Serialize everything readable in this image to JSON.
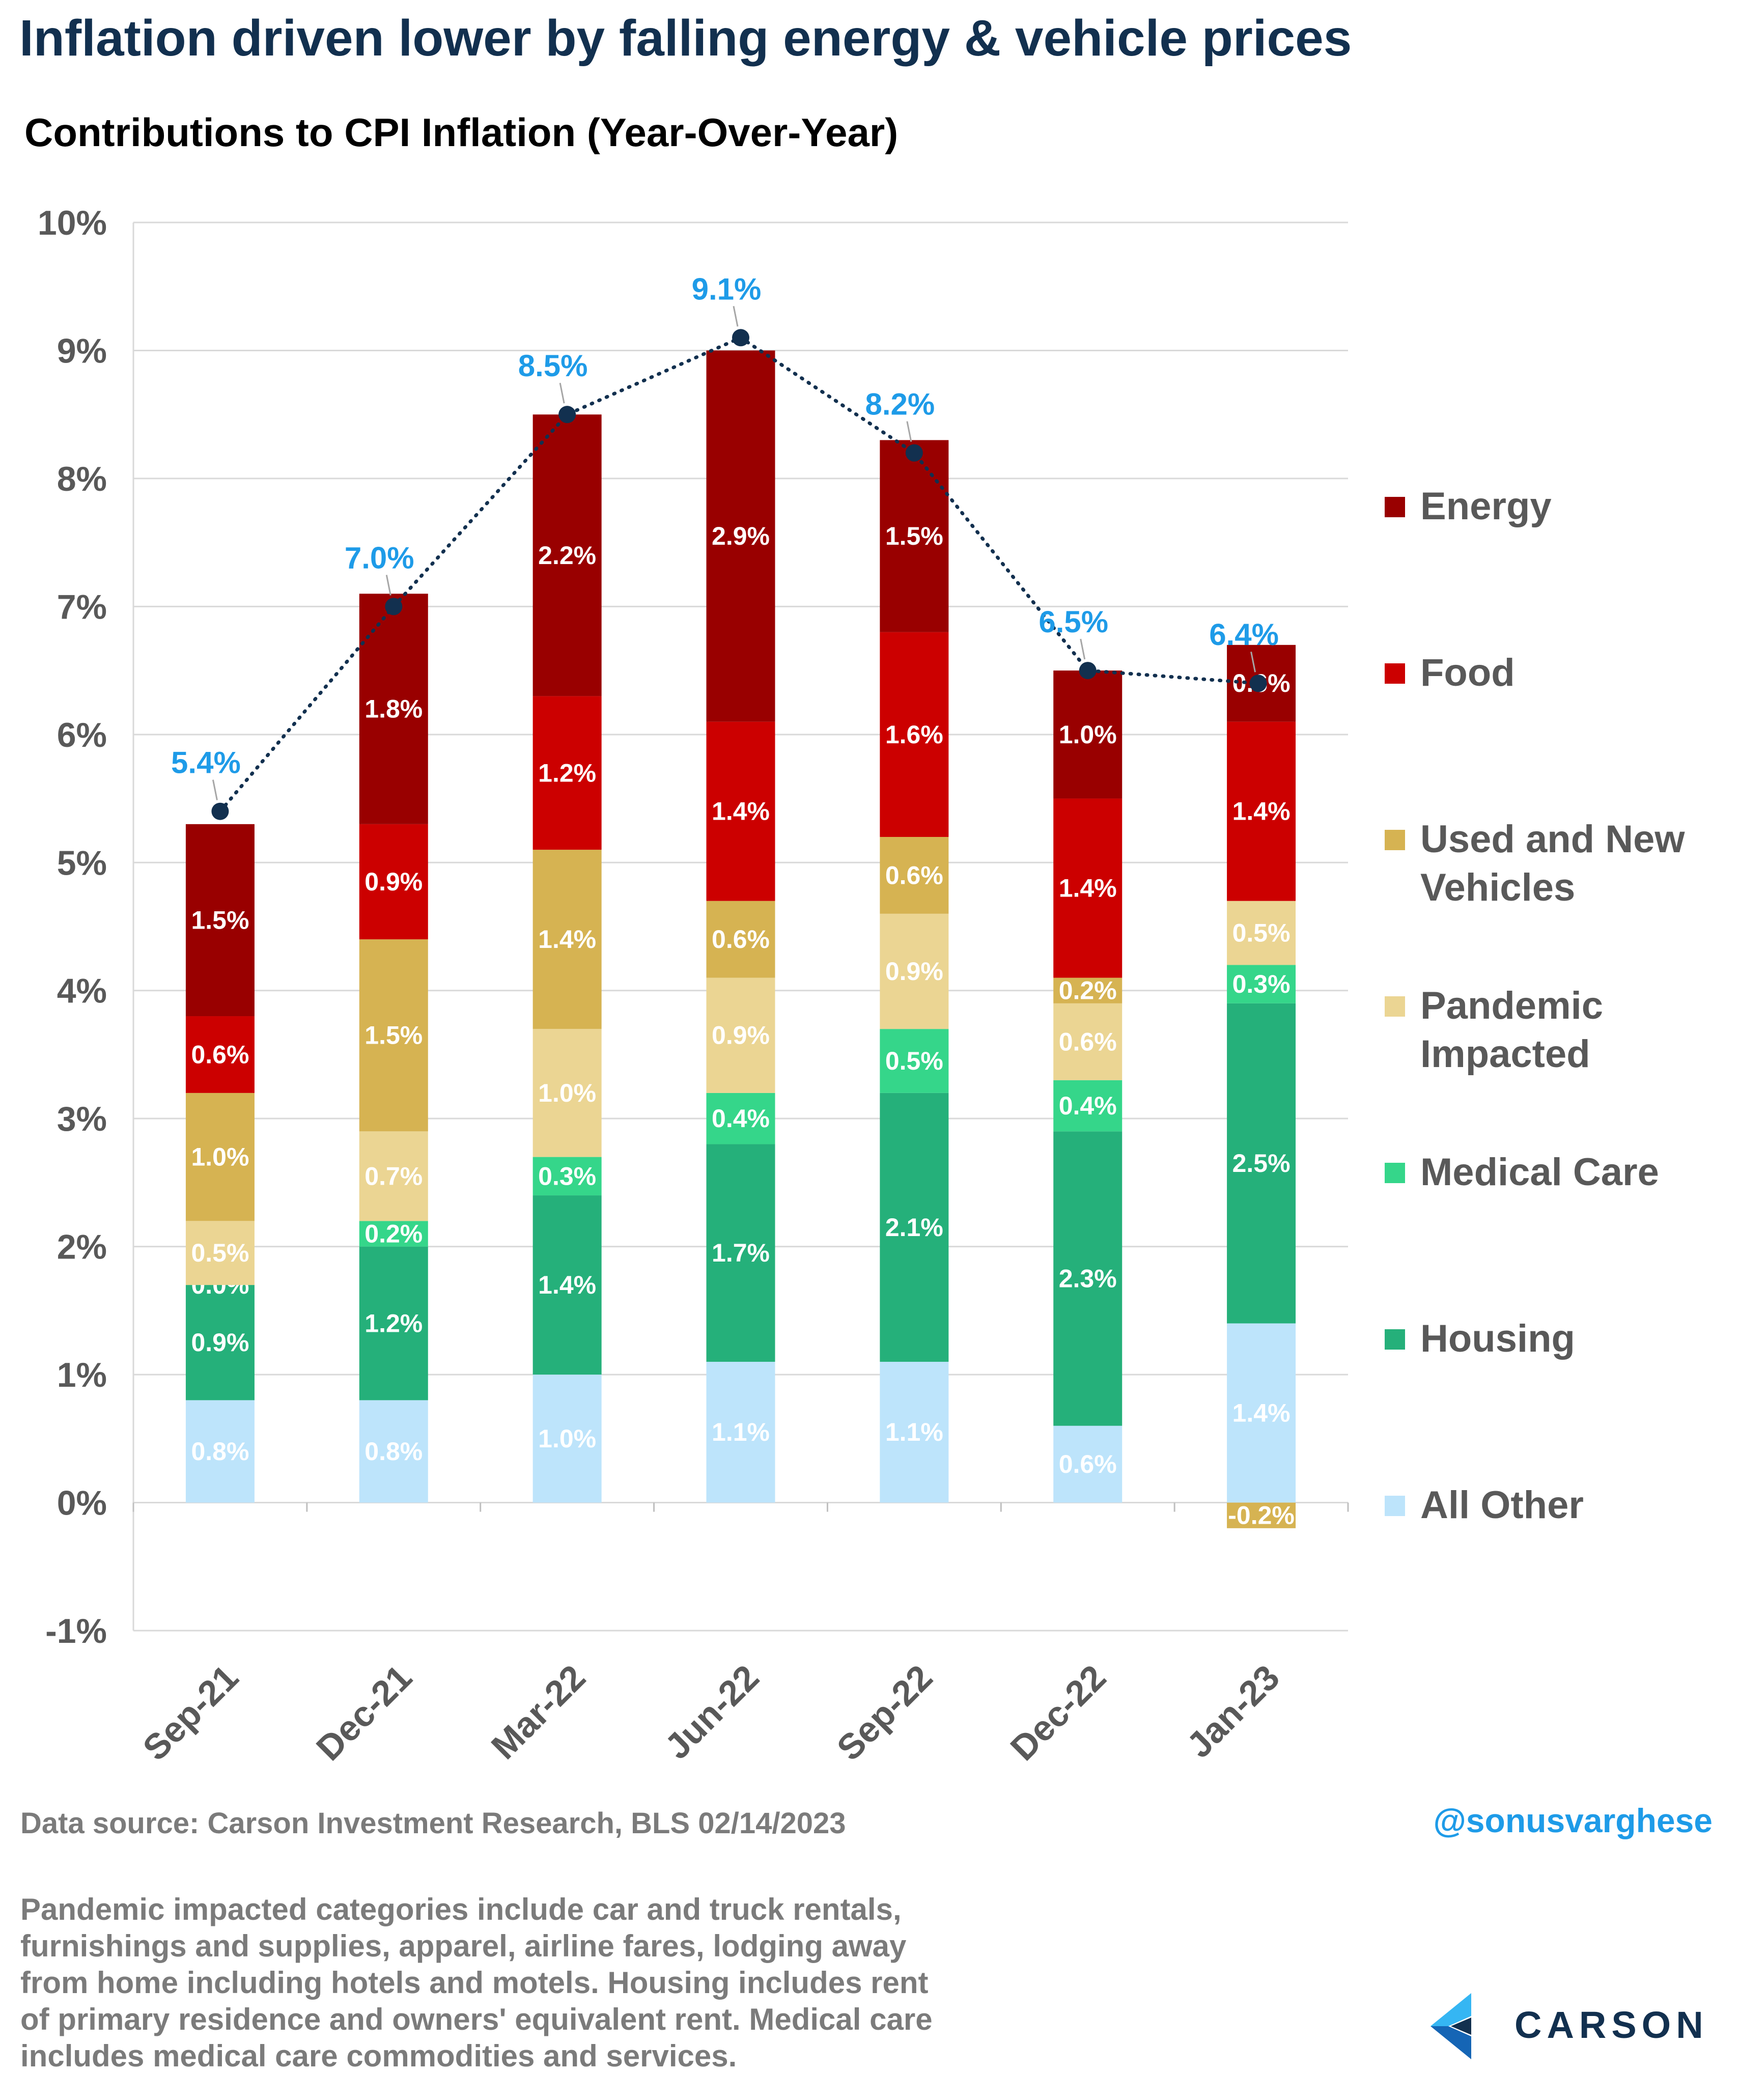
{
  "title": "Inflation driven lower by falling energy & vehicle prices",
  "subtitle": "Contributions to CPI Inflation (Year-Over-Year)",
  "source": "Data source: Carson Investment Research, BLS   02/14/2023",
  "handle": "@sonusvarghese",
  "brand": "CARSON",
  "footnote_lines": [
    "Pandemic impacted categories include car and truck rentals,",
    "furnishings and supplies, apparel, airline fares, lodging away",
    "from home including hotels and motels. Housing includes rent",
    "of primary residence and owners' equivalent rent. Medical care",
    "includes medical care commodities and services."
  ],
  "chart_data": {
    "type": "bar",
    "stacked": true,
    "categories": [
      "Sep-21",
      "Dec-21",
      "Mar-22",
      "Jun-22",
      "Sep-22",
      "Dec-22",
      "Jan-23"
    ],
    "ylim": [
      -1,
      10
    ],
    "y_ticks": [
      -1,
      0,
      1,
      2,
      3,
      4,
      5,
      6,
      7,
      8,
      9,
      10
    ],
    "y_tick_labels": [
      "-1%",
      "0%",
      "1%",
      "2%",
      "3%",
      "4%",
      "5%",
      "6%",
      "7%",
      "8%",
      "9%",
      "10%"
    ],
    "grid": true,
    "legend_position": "right",
    "series": [
      {
        "name": "All Other",
        "color": "#bde4fb",
        "values": [
          0.8,
          0.8,
          1.0,
          1.1,
          1.1,
          0.6,
          1.4
        ],
        "labels": [
          "0.8%",
          "0.8%",
          "1.0%",
          "1.1%",
          "1.1%",
          "0.6%",
          "1.4%"
        ]
      },
      {
        "name": "Housing",
        "color": "#25b07a",
        "values": [
          0.9,
          1.2,
          1.4,
          1.7,
          2.1,
          2.3,
          2.5
        ],
        "labels": [
          "0.9%",
          "1.2%",
          "1.4%",
          "1.7%",
          "2.1%",
          "2.3%",
          "2.5%"
        ]
      },
      {
        "name": "Medical Care",
        "color": "#35d68a",
        "values": [
          0.0,
          0.2,
          0.3,
          0.4,
          0.5,
          0.4,
          0.3
        ],
        "labels": [
          "0.0%",
          "0.2%",
          "0.3%",
          "0.4%",
          "0.5%",
          "0.4%",
          "0.3%"
        ]
      },
      {
        "name": "Pandemic\nImpacted",
        "color": "#ebd593",
        "values": [
          0.5,
          0.7,
          1.0,
          0.9,
          0.9,
          0.6,
          0.5
        ],
        "labels": [
          "0.5%",
          "0.7%",
          "1.0%",
          "0.9%",
          "0.9%",
          "0.6%",
          "0.5%"
        ]
      },
      {
        "name": "Used and New\nVehicles",
        "color": "#d6b352",
        "values": [
          1.0,
          1.5,
          1.4,
          0.6,
          0.6,
          0.2,
          -0.2
        ],
        "labels": [
          "1.0%",
          "1.5%",
          "1.4%",
          "0.6%",
          "0.6%",
          "0.2%",
          "-0.2%"
        ]
      },
      {
        "name": "Food",
        "color": "#cc0000",
        "values": [
          0.6,
          0.9,
          1.2,
          1.4,
          1.6,
          1.4,
          1.4
        ],
        "labels": [
          "0.6%",
          "0.9%",
          "1.2%",
          "1.4%",
          "1.6%",
          "1.4%",
          "1.4%"
        ]
      },
      {
        "name": "Energy",
        "color": "#990000",
        "values": [
          1.5,
          1.8,
          2.2,
          2.9,
          1.5,
          1.0,
          0.6
        ],
        "labels": [
          "1.5%",
          "1.8%",
          "2.2%",
          "2.9%",
          "1.5%",
          "1.0%",
          "0.6%"
        ]
      }
    ],
    "legend_order": [
      "Energy",
      "Food",
      "Used and New\nVehicles",
      "Pandemic\nImpacted",
      "Medical Care",
      "Housing",
      "All Other"
    ],
    "total": {
      "color": "#12304f",
      "label_color": "#1e9be8",
      "values": [
        5.4,
        7.0,
        8.5,
        9.1,
        8.2,
        6.5,
        6.4
      ],
      "labels": [
        "5.4%",
        "7.0%",
        "8.5%",
        "9.1%",
        "8.2%",
        "6.5%",
        "6.4%"
      ]
    }
  }
}
